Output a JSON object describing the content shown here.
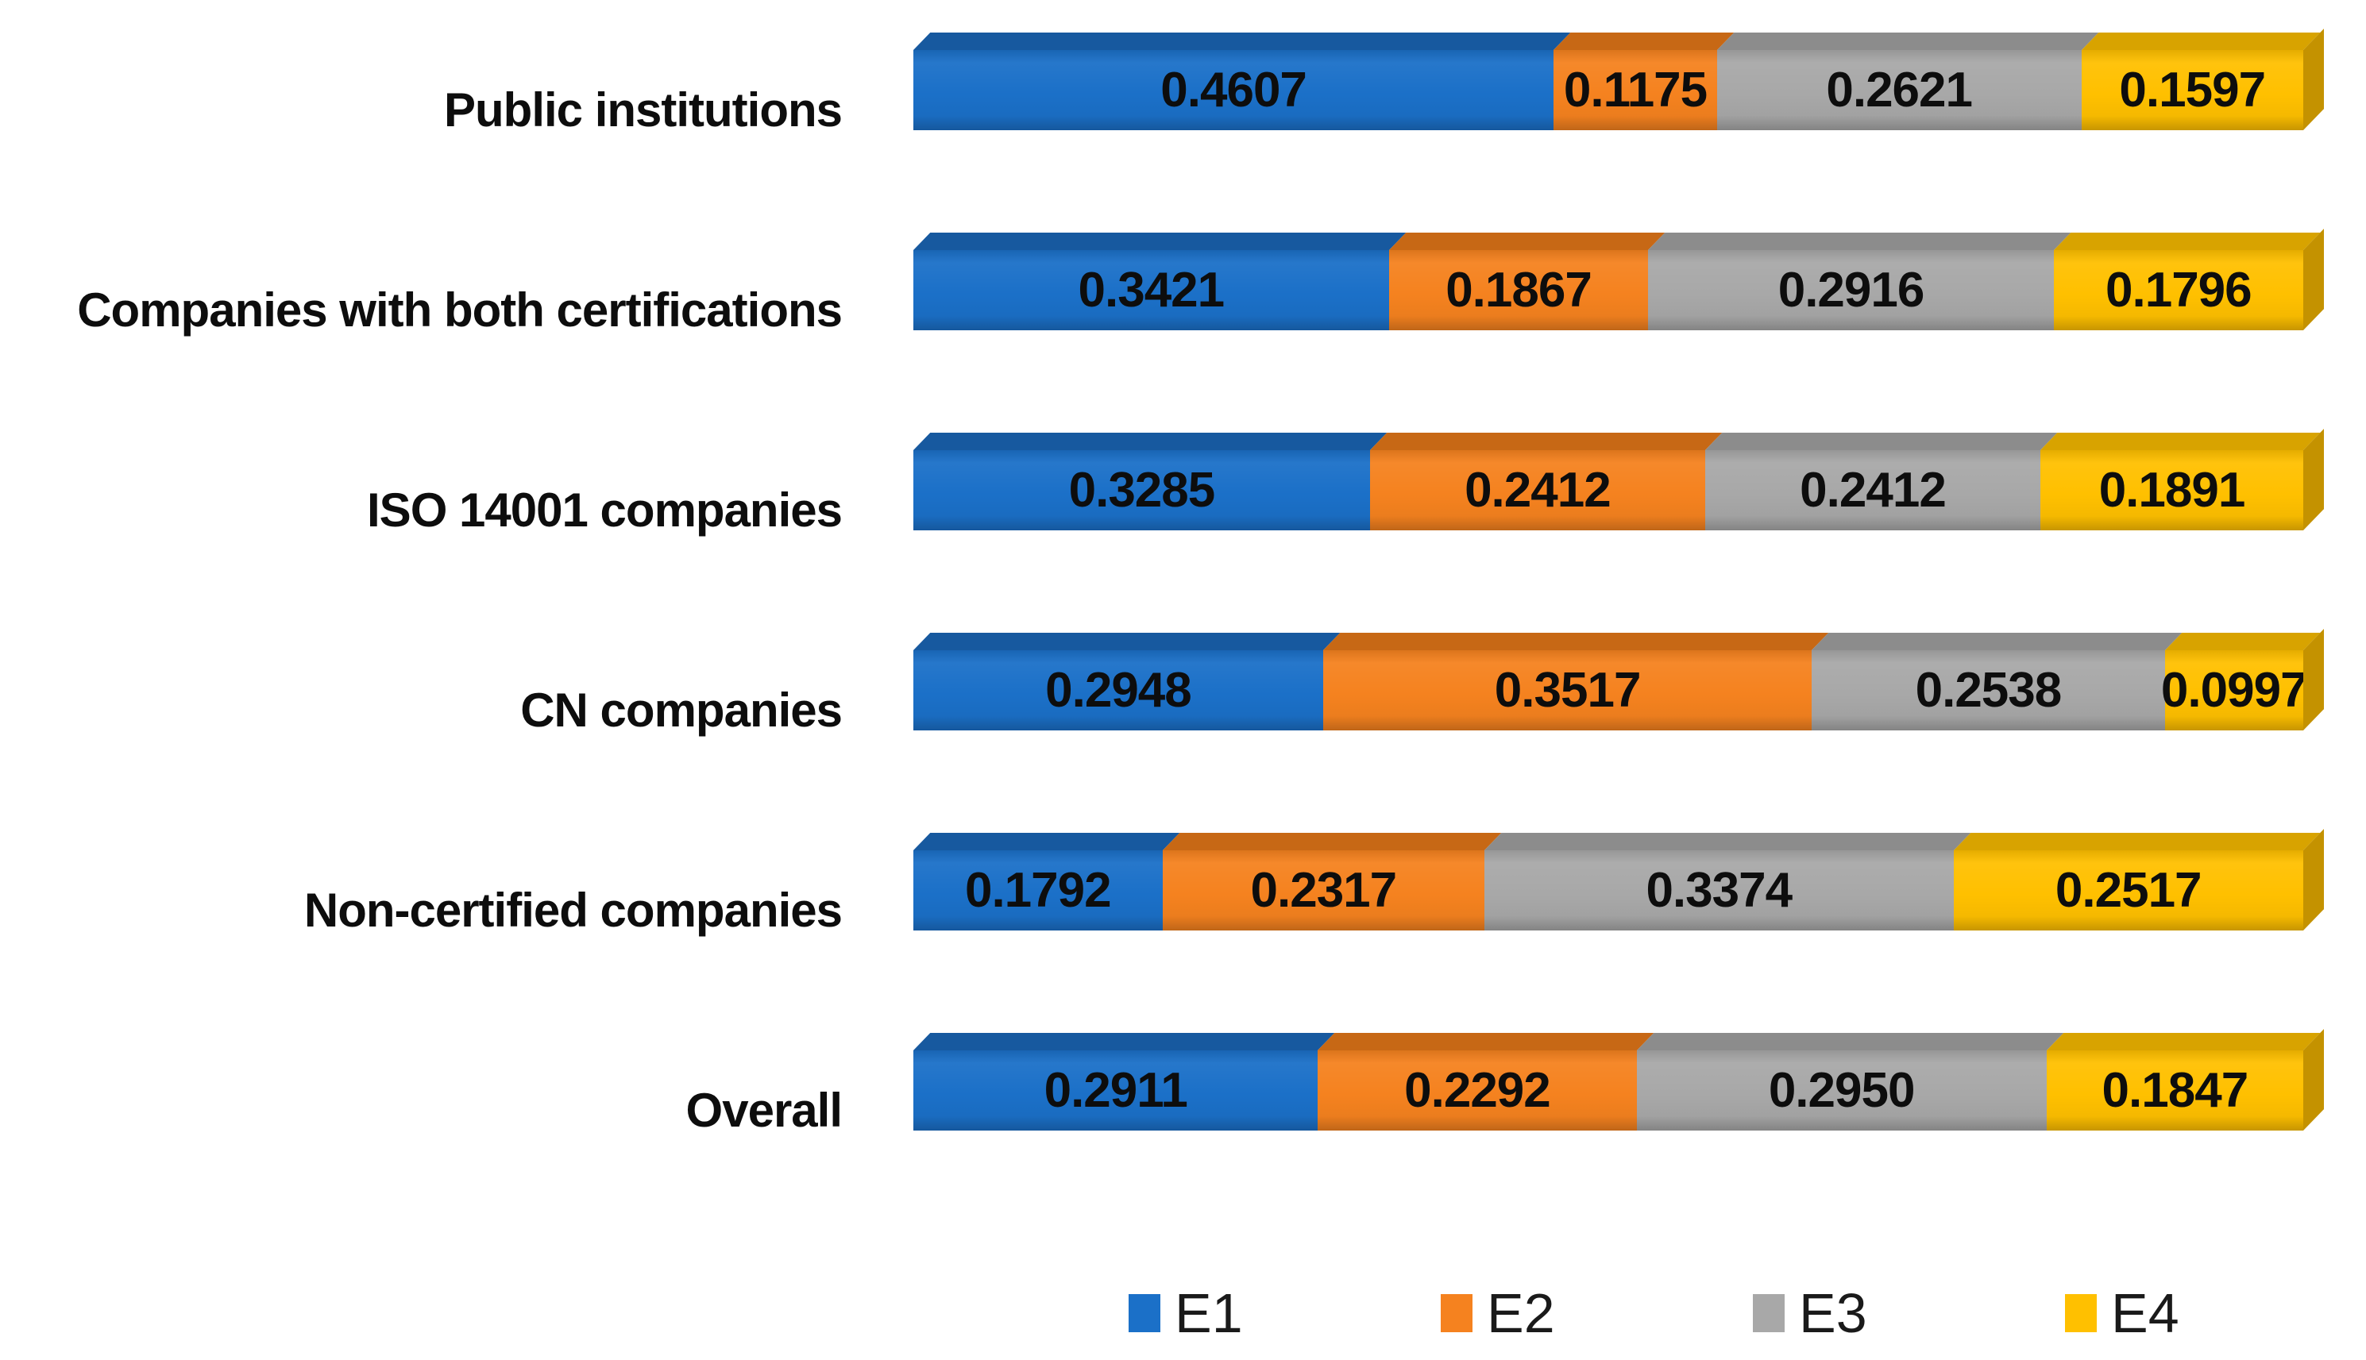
{
  "chart_data": {
    "type": "bar",
    "variant": "3d-horizontal-stacked",
    "title": "",
    "xlabel": "",
    "ylabel": "",
    "xlim": [
      0,
      1
    ],
    "grid": false,
    "legend_position": "bottom",
    "value_label_decimals": 4,
    "categories": [
      "Public institutions",
      "Companies with both certifications",
      "ISO 14001 companies",
      "CN companies",
      "Non-certified companies",
      "Overall"
    ],
    "series": [
      {
        "name": "E1",
        "color": "#1B70C8",
        "color_top": "#17599F",
        "color_side": "#144E8C",
        "values": [
          0.4607,
          0.3421,
          0.3285,
          0.2948,
          0.1792,
          0.2911
        ]
      },
      {
        "name": "E2",
        "color": "#F5821F",
        "color_top": "#C76815",
        "color_side": "#B35E13",
        "values": [
          0.1175,
          0.1867,
          0.2412,
          0.3517,
          0.2317,
          0.2292
        ]
      },
      {
        "name": "E3",
        "color": "#A8A8A8",
        "color_top": "#8C8C8C",
        "color_side": "#7F7F7F",
        "values": [
          0.2621,
          0.2916,
          0.2412,
          0.2538,
          0.3374,
          0.295
        ]
      },
      {
        "name": "E4",
        "color": "#FFC000",
        "color_top": "#D8A300",
        "color_side": "#C49200",
        "values": [
          0.1597,
          0.1796,
          0.1891,
          0.0997,
          0.2517,
          0.1847
        ]
      }
    ]
  },
  "legend": {
    "items": [
      "E1",
      "E2",
      "E3",
      "E4"
    ]
  }
}
